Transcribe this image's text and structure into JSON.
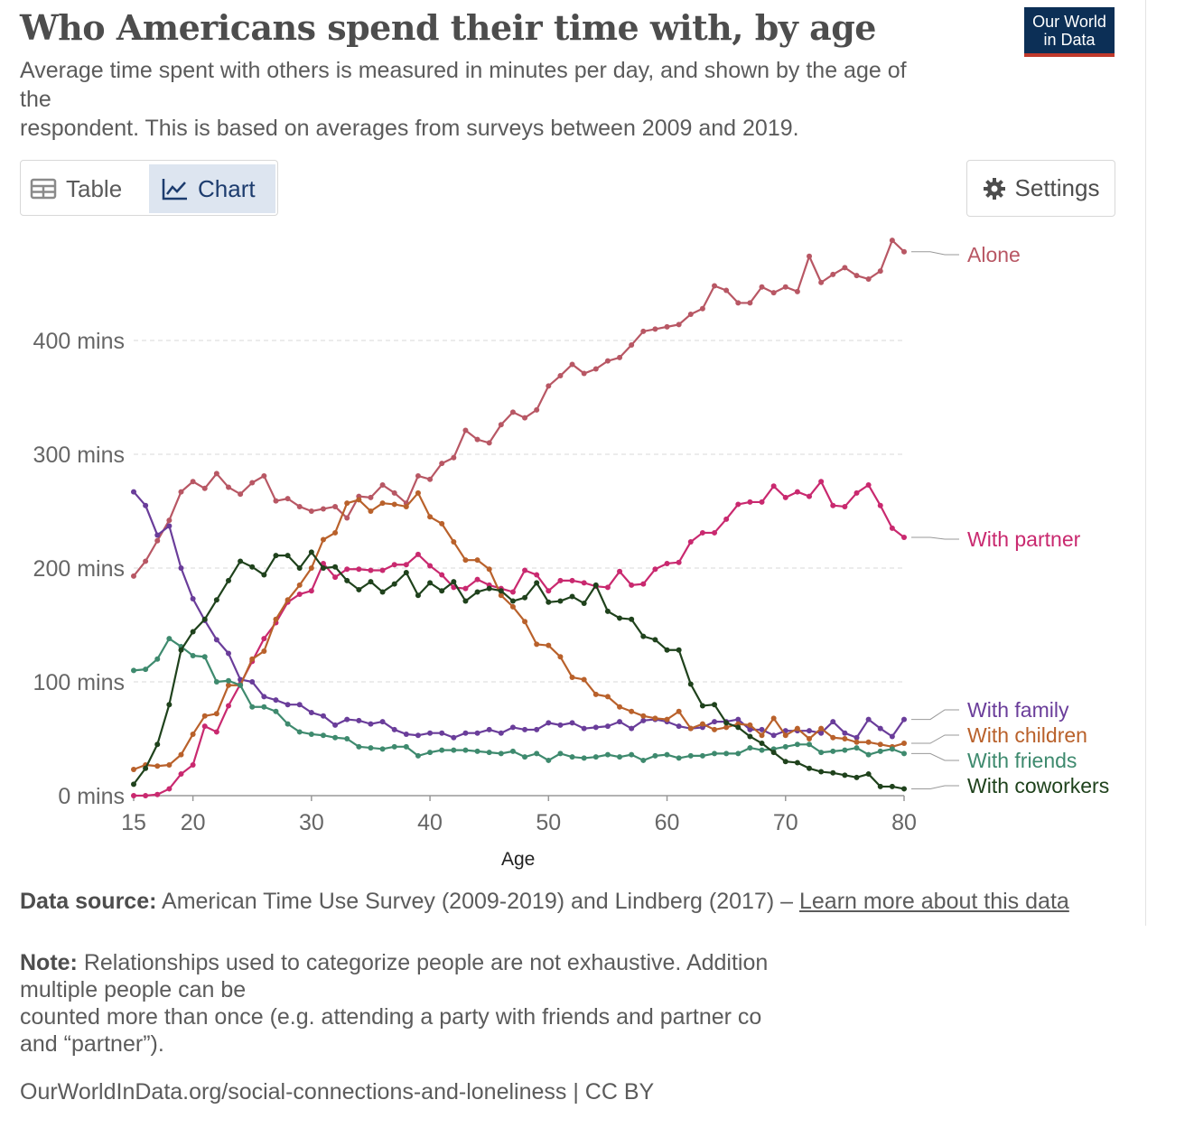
{
  "header": {
    "title": "Who Americans spend their time with, by age",
    "subtitle_line1": "Average time spent with others is measured in minutes per day, and shown by the age of",
    "subtitle_line2": "the",
    "subtitle_line3": "respondent. This is based on averages from surveys between 2009 and 2019.",
    "logo_line1": "Our World",
    "logo_line2": "in Data"
  },
  "tabs": {
    "table_label": "Table",
    "chart_label": "Chart",
    "active": "Chart"
  },
  "settings_label": "Settings",
  "colors": {
    "Alone": "#b85764",
    "With partner": "#c9296f",
    "With family": "#6a3d9a",
    "With children": "#b9612b",
    "With friends": "#3e8a6e",
    "With coworkers": "#1f421c"
  },
  "chart_data": {
    "type": "line",
    "title": "Who Americans spend their time with, by age",
    "xlabel": "Age",
    "ylabel": "",
    "xlim": [
      15,
      80
    ],
    "ylim": [
      0,
      480
    ],
    "y_ticks": [
      {
        "value": 0,
        "label": "0 mins"
      },
      {
        "value": 100,
        "label": "100 mins"
      },
      {
        "value": 200,
        "label": "200 mins"
      },
      {
        "value": 300,
        "label": "300 mins"
      },
      {
        "value": 400,
        "label": "400 mins"
      }
    ],
    "x_ticks": [
      15,
      20,
      30,
      40,
      50,
      60,
      70,
      80
    ],
    "x": [
      15,
      16,
      17,
      18,
      19,
      20,
      21,
      22,
      23,
      24,
      25,
      26,
      27,
      28,
      29,
      30,
      31,
      32,
      33,
      34,
      35,
      36,
      37,
      38,
      39,
      40,
      41,
      42,
      43,
      44,
      45,
      46,
      47,
      48,
      49,
      50,
      51,
      52,
      53,
      54,
      55,
      56,
      57,
      58,
      59,
      60,
      61,
      62,
      63,
      64,
      65,
      66,
      67,
      68,
      69,
      70,
      71,
      72,
      73,
      74,
      75,
      76,
      77,
      78,
      79,
      80
    ],
    "series": [
      {
        "name": "Alone",
        "values": [
          193,
          206,
          224,
          242,
          267,
          276,
          270,
          283,
          271,
          265,
          275,
          281,
          259,
          261,
          254,
          250,
          252,
          254,
          244,
          263,
          262,
          273,
          266,
          257,
          281,
          278,
          292,
          297,
          321,
          313,
          310,
          326,
          337,
          332,
          339,
          360,
          369,
          379,
          371,
          375,
          382,
          385,
          396,
          408,
          410,
          412,
          414,
          423,
          428,
          448,
          444,
          433,
          433,
          447,
          442,
          447,
          443,
          474,
          451,
          458,
          464,
          457,
          454,
          461,
          488,
          478
        ]
      },
      {
        "name": "With partner",
        "values": [
          0,
          0,
          1,
          6,
          19,
          27,
          61,
          56,
          79,
          98,
          118,
          138,
          152,
          170,
          177,
          180,
          204,
          192,
          199,
          199,
          198,
          198,
          203,
          203,
          212,
          202,
          194,
          183,
          182,
          190,
          185,
          182,
          179,
          198,
          194,
          180,
          189,
          189,
          187,
          184,
          183,
          197,
          185,
          186,
          199,
          204,
          205,
          223,
          231,
          231,
          243,
          256,
          258,
          258,
          272,
          262,
          267,
          263,
          276,
          255,
          254,
          266,
          273,
          255,
          235,
          227
        ]
      },
      {
        "name": "With family",
        "values": [
          267,
          255,
          229,
          237,
          200,
          173,
          154,
          137,
          125,
          102,
          100,
          87,
          84,
          80,
          80,
          73,
          70,
          62,
          67,
          66,
          63,
          65,
          58,
          54,
          53,
          55,
          55,
          51,
          55,
          55,
          58,
          55,
          60,
          58,
          58,
          64,
          62,
          64,
          59,
          60,
          61,
          65,
          59,
          66,
          67,
          65,
          61,
          59,
          60,
          65,
          65,
          67,
          58,
          58,
          53,
          57,
          57,
          57,
          55,
          65,
          55,
          51,
          67,
          59,
          52,
          67
        ]
      },
      {
        "name": "With children",
        "values": [
          23,
          27,
          26,
          27,
          36,
          54,
          70,
          72,
          97,
          97,
          120,
          127,
          155,
          172,
          185,
          200,
          225,
          231,
          257,
          260,
          250,
          257,
          256,
          254,
          266,
          245,
          239,
          223,
          207,
          207,
          199,
          176,
          166,
          153,
          133,
          132,
          122,
          104,
          102,
          89,
          87,
          78,
          74,
          70,
          68,
          67,
          74,
          59,
          63,
          58,
          60,
          63,
          62,
          53,
          68,
          53,
          59,
          50,
          59,
          51,
          50,
          47,
          47,
          45,
          43,
          46
        ]
      },
      {
        "name": "With friends",
        "values": [
          110,
          111,
          120,
          138,
          131,
          123,
          122,
          100,
          101,
          97,
          78,
          78,
          74,
          63,
          56,
          54,
          53,
          51,
          50,
          43,
          42,
          41,
          43,
          43,
          35,
          38,
          40,
          40,
          40,
          39,
          38,
          37,
          39,
          34,
          37,
          31,
          37,
          34,
          33,
          34,
          36,
          34,
          36,
          31,
          35,
          36,
          33,
          35,
          35,
          37,
          37,
          37,
          42,
          40,
          41,
          43,
          45,
          45,
          38,
          39,
          40,
          42,
          36,
          39,
          41,
          37
        ]
      },
      {
        "name": "With coworkers",
        "values": [
          10,
          24,
          45,
          80,
          128,
          144,
          155,
          172,
          189,
          206,
          201,
          194,
          211,
          211,
          200,
          214,
          200,
          201,
          189,
          181,
          188,
          179,
          186,
          196,
          176,
          187,
          180,
          188,
          171,
          179,
          182,
          180,
          171,
          174,
          187,
          170,
          171,
          175,
          169,
          185,
          162,
          156,
          155,
          140,
          137,
          128,
          128,
          98,
          79,
          80,
          64,
          60,
          52,
          46,
          38,
          30,
          29,
          24,
          21,
          20,
          18,
          16,
          19,
          8,
          8,
          6
        ]
      }
    ],
    "series_labels": [
      "Alone",
      "With partner",
      "With family",
      "With children",
      "With friends",
      "With coworkers"
    ],
    "grid": true,
    "legend_placement": "right (inline labels)"
  },
  "footer": {
    "source_label": "Data source:",
    "source_text": "American Time Use Survey (2009-2019) and Lindberg (2017) –",
    "learn_more": "Learn more about this data",
    "note_label": "Note:",
    "note_text_1": "Relationships used to categorize people are not exhaustive. Addition",
    "note_text_2": "multiple people can be",
    "note_text_3": "counted more than once (e.g. attending a party with friends and partner co",
    "note_text_4": "and “partner”).",
    "url": "OurWorldInData.org/social-connections-and-loneliness | CC BY"
  }
}
